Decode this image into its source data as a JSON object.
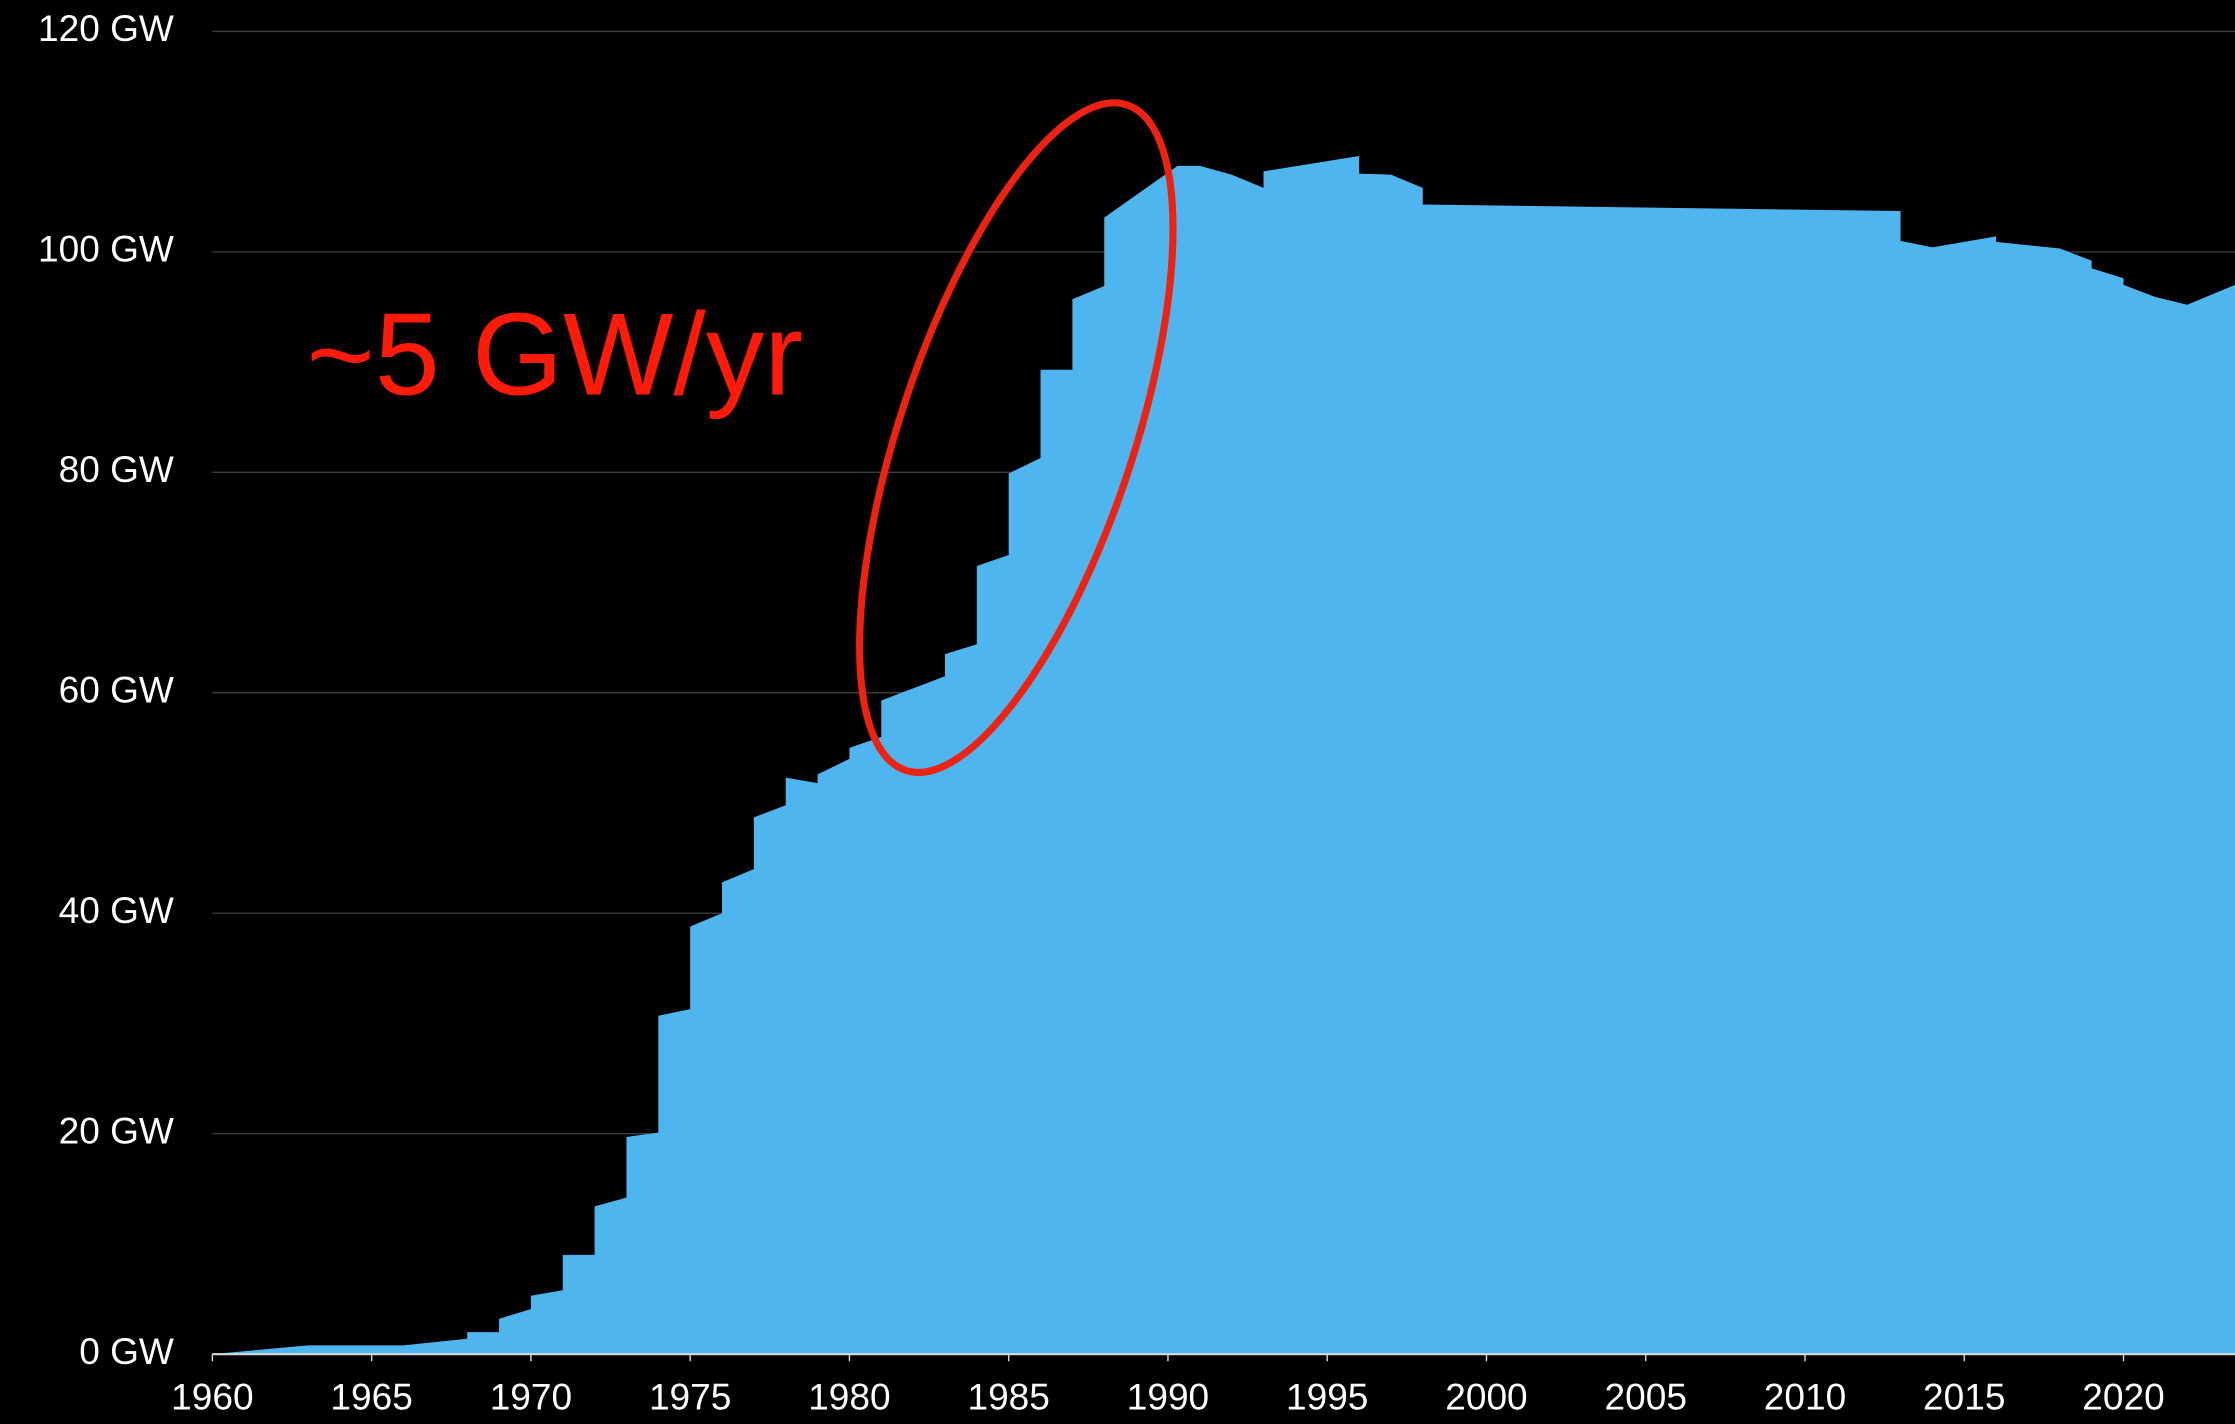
{
  "chart_data": {
    "type": "area",
    "annotation": "~5 GW/yr",
    "color": "#4fb5ef",
    "x": [
      1960,
      1963,
      1966,
      1968,
      1968,
      1969,
      1969,
      1970,
      1970,
      1971,
      1971,
      1972,
      1972,
      1973,
      1973,
      1974,
      1974,
      1975,
      1975,
      1976,
      1976,
      1977,
      1977,
      1978,
      1978,
      1979,
      1979,
      1980,
      1980,
      1981,
      1981,
      1983,
      1983,
      1984,
      1984,
      1985,
      1985,
      1986,
      1986,
      1987,
      1987,
      1988,
      1988,
      1990.3,
      1991,
      1992,
      1993,
      1993,
      1996,
      1996,
      1997,
      1998,
      1998,
      2013,
      2013,
      2014,
      2016,
      2016,
      2018,
      2019,
      2019,
      2020,
      2020,
      2021,
      2022,
      2023.5
    ],
    "values": [
      0,
      0.8,
      0.8,
      1.4,
      2.0,
      2.0,
      3.2,
      4.1,
      5.3,
      5.8,
      9,
      9,
      13.4,
      14.2,
      19.7,
      20.1,
      30.7,
      31.3,
      38.8,
      40,
      42.8,
      44,
      48.7,
      49.8,
      52.3,
      51.8,
      52.6,
      54,
      55,
      56,
      59.3,
      61.5,
      63.5,
      64.4,
      71.5,
      72.5,
      79.9,
      81.3,
      89.3,
      89.3,
      95.7,
      96.9,
      103.1,
      107.8,
      107.8,
      107,
      105.8,
      107.3,
      108.7,
      107.1,
      107,
      105.8,
      104.3,
      103.7,
      101,
      100.4,
      101.4,
      100.9,
      100.3,
      99.2,
      98.5,
      97.6,
      97.0,
      95.9,
      95.2,
      97
    ],
    "xlim": [
      1960,
      2023.5
    ],
    "xticks": [
      1960,
      1965,
      1970,
      1975,
      1980,
      1985,
      1990,
      1995,
      2000,
      2005,
      2010,
      2015,
      2020
    ],
    "ylim": [
      0,
      120
    ],
    "yticks": [
      {
        "value": 0,
        "label": "0 GW"
      },
      {
        "value": 20,
        "label": "20 GW"
      },
      {
        "value": 40,
        "label": "40 GW"
      },
      {
        "value": 60,
        "label": "60 GW"
      },
      {
        "value": 80,
        "label": "80 GW"
      },
      {
        "value": 100,
        "label": "100 GW"
      },
      {
        "value": 120,
        "label": "120 GW"
      }
    ],
    "grid": true
  }
}
